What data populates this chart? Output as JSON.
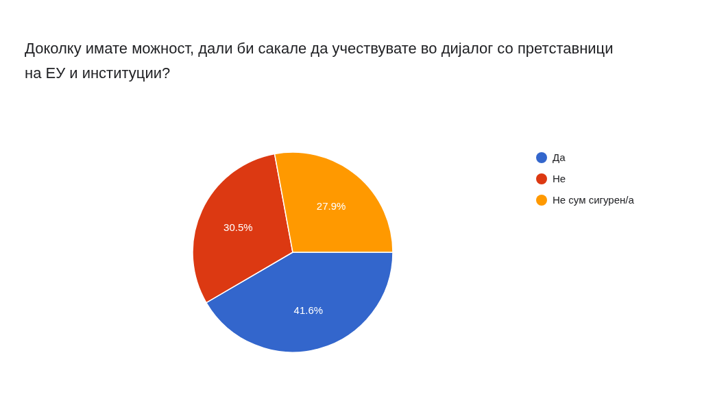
{
  "chart_data": {
    "type": "pie",
    "title": "Доколку имате можност, дали би сакале да учествувате во дијалог со претставници на ЕУ и институции?",
    "categories": [
      "Да",
      "Не",
      "Не сум сигурен/а"
    ],
    "values": [
      41.6,
      30.5,
      27.9
    ],
    "colors": [
      "#3366cc",
      "#dc3912",
      "#ff9900"
    ],
    "value_labels": [
      "41.6%",
      "30.5%",
      "27.9%"
    ],
    "legend": "right"
  }
}
